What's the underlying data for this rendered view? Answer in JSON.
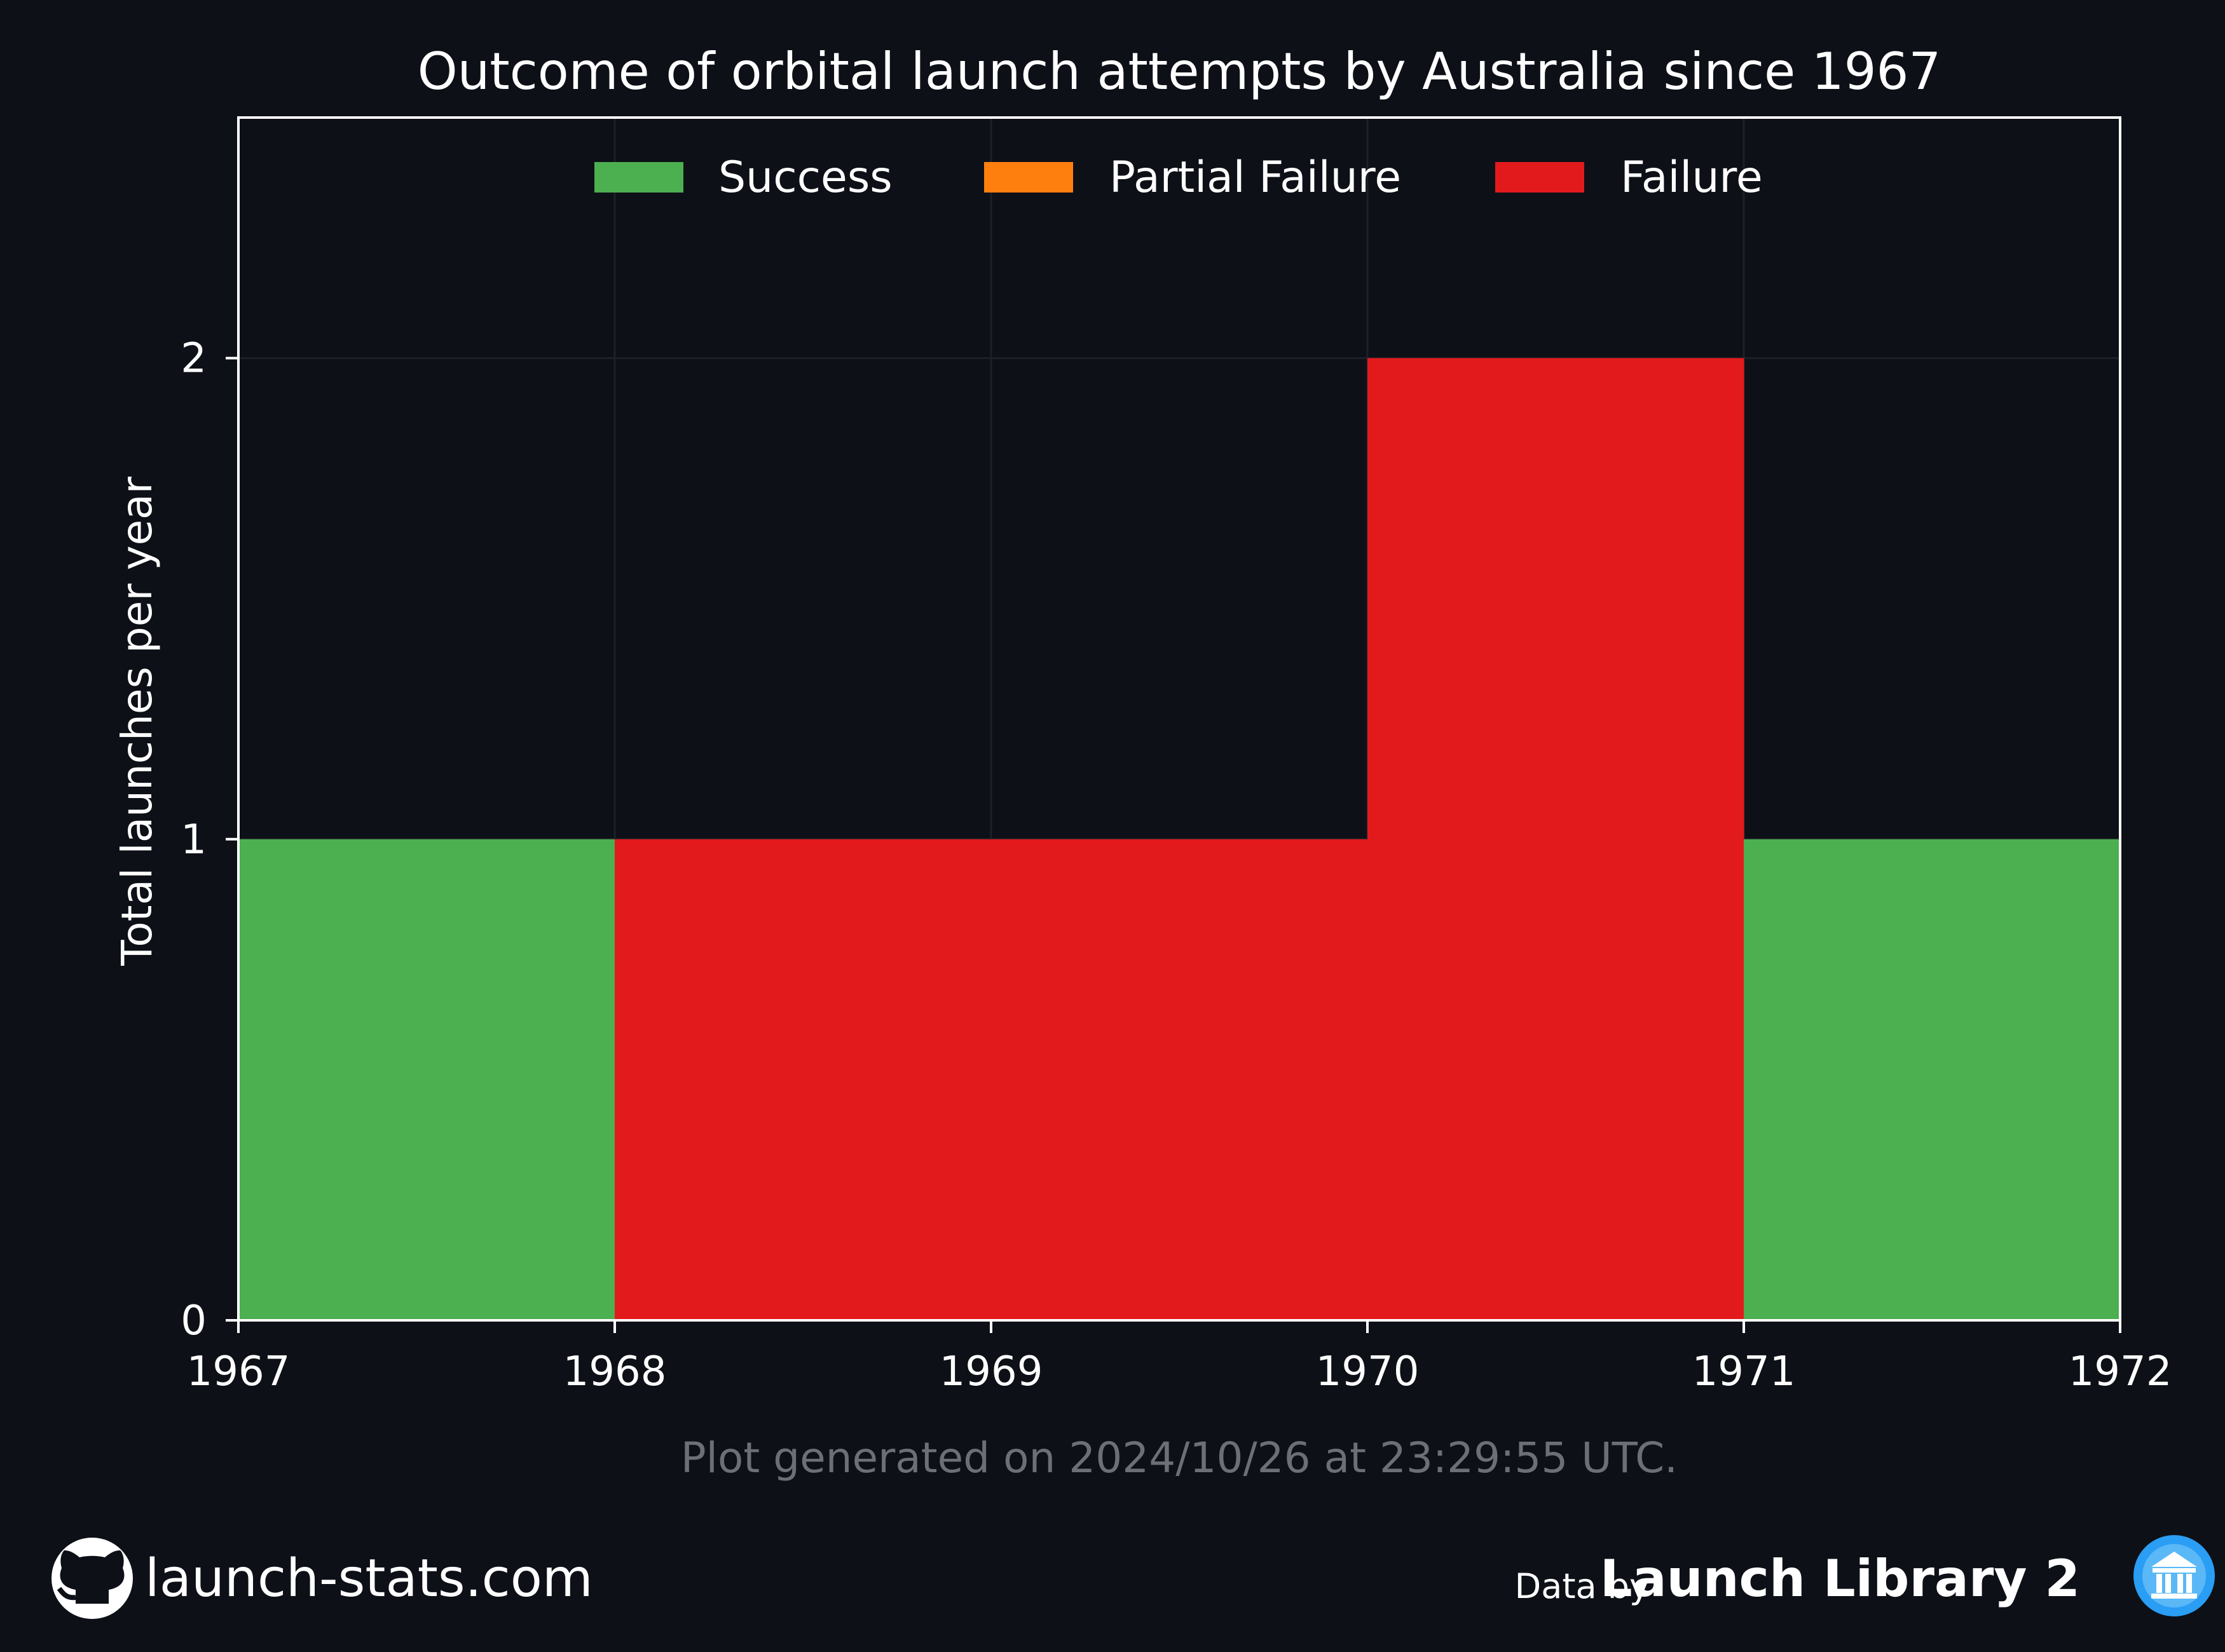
{
  "chart_data": {
    "type": "bar",
    "title": "Outcome of orbital launch attempts by Australia since 1967",
    "ylabel": "Total launches per year",
    "xlabel": "",
    "x_ticks": [
      "1967",
      "1968",
      "1969",
      "1970",
      "1971",
      "1972"
    ],
    "y_ticks": [
      "0",
      "1",
      "2"
    ],
    "xlim": [
      1967,
      1972
    ],
    "ylim": [
      0,
      2.5
    ],
    "categories": [
      "1967",
      "1968",
      "1969",
      "1970",
      "1971"
    ],
    "series": [
      {
        "name": "Success",
        "color": "#4caf50",
        "values": [
          1,
          0,
          0,
          0,
          1
        ]
      },
      {
        "name": "Partial Failure",
        "color": "#ff7f0e",
        "values": [
          0,
          0,
          0,
          0,
          0
        ]
      },
      {
        "name": "Failure",
        "color": "#e31a1c",
        "values": [
          0,
          1,
          1,
          2,
          0
        ]
      }
    ],
    "grid": true,
    "legend_position": "top-center"
  },
  "generated_note": "Plot generated on 2024/10/26 at 23:29:55 UTC.",
  "footer": {
    "site": "launch-stats.com",
    "data_by_prefix": "Data by",
    "data_source": "Launch Library 2"
  }
}
